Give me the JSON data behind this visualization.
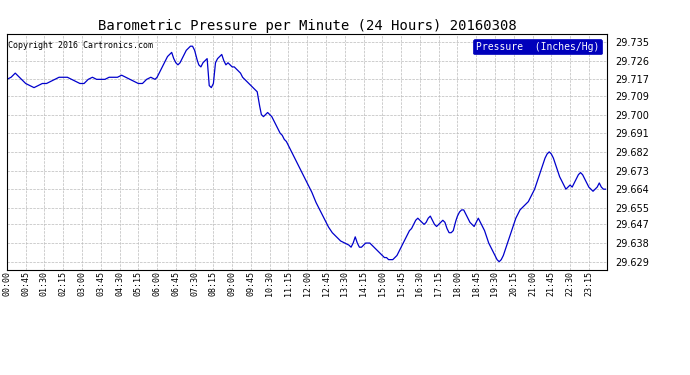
{
  "title": "Barometric Pressure per Minute (24 Hours) 20160308",
  "copyright_text": "Copyright 2016 Cartronics.com",
  "legend_label": "Pressure  (Inches/Hg)",
  "background_color": "#ffffff",
  "plot_bg_color": "#ffffff",
  "line_color": "#0000cc",
  "grid_color": "#bbbbbb",
  "yticks": [
    29.629,
    29.638,
    29.647,
    29.655,
    29.664,
    29.673,
    29.682,
    29.691,
    29.7,
    29.709,
    29.717,
    29.726,
    29.735
  ],
  "ylim": [
    29.625,
    29.739
  ],
  "xtick_labels": [
    "00:00",
    "00:45",
    "01:30",
    "02:15",
    "03:00",
    "03:45",
    "04:30",
    "05:15",
    "06:00",
    "06:45",
    "07:30",
    "08:15",
    "09:00",
    "09:45",
    "10:30",
    "11:15",
    "12:00",
    "12:45",
    "13:30",
    "14:15",
    "15:00",
    "15:45",
    "16:30",
    "17:15",
    "18:00",
    "18:45",
    "19:30",
    "20:15",
    "21:00",
    "21:45",
    "22:30",
    "23:15"
  ],
  "keypoints": [
    [
      0,
      29.717
    ],
    [
      10,
      29.718
    ],
    [
      20,
      29.72
    ],
    [
      30,
      29.718
    ],
    [
      40,
      29.716
    ],
    [
      45,
      29.715
    ],
    [
      55,
      29.714
    ],
    [
      65,
      29.713
    ],
    [
      75,
      29.714
    ],
    [
      85,
      29.715
    ],
    [
      95,
      29.715
    ],
    [
      105,
      29.716
    ],
    [
      115,
      29.717
    ],
    [
      125,
      29.718
    ],
    [
      135,
      29.718
    ],
    [
      145,
      29.718
    ],
    [
      155,
      29.717
    ],
    [
      165,
      29.716
    ],
    [
      175,
      29.715
    ],
    [
      185,
      29.715
    ],
    [
      195,
      29.717
    ],
    [
      205,
      29.718
    ],
    [
      215,
      29.717
    ],
    [
      225,
      29.717
    ],
    [
      235,
      29.717
    ],
    [
      245,
      29.718
    ],
    [
      255,
      29.718
    ],
    [
      265,
      29.718
    ],
    [
      275,
      29.719
    ],
    [
      285,
      29.718
    ],
    [
      295,
      29.717
    ],
    [
      305,
      29.716
    ],
    [
      315,
      29.715
    ],
    [
      325,
      29.715
    ],
    [
      335,
      29.717
    ],
    [
      345,
      29.718
    ],
    [
      355,
      29.717
    ],
    [
      360,
      29.718
    ],
    [
      370,
      29.722
    ],
    [
      375,
      29.724
    ],
    [
      380,
      29.726
    ],
    [
      385,
      29.728
    ],
    [
      390,
      29.729
    ],
    [
      395,
      29.73
    ],
    [
      400,
      29.727
    ],
    [
      405,
      29.725
    ],
    [
      410,
      29.724
    ],
    [
      415,
      29.725
    ],
    [
      420,
      29.727
    ],
    [
      425,
      29.729
    ],
    [
      430,
      29.731
    ],
    [
      435,
      29.732
    ],
    [
      440,
      29.733
    ],
    [
      445,
      29.733
    ],
    [
      450,
      29.731
    ],
    [
      455,
      29.727
    ],
    [
      460,
      29.724
    ],
    [
      465,
      29.723
    ],
    [
      470,
      29.725
    ],
    [
      475,
      29.726
    ],
    [
      480,
      29.727
    ],
    [
      485,
      29.714
    ],
    [
      490,
      29.713
    ],
    [
      495,
      29.715
    ],
    [
      500,
      29.725
    ],
    [
      505,
      29.727
    ],
    [
      510,
      29.728
    ],
    [
      515,
      29.729
    ],
    [
      520,
      29.726
    ],
    [
      525,
      29.724
    ],
    [
      530,
      29.725
    ],
    [
      535,
      29.724
    ],
    [
      540,
      29.723
    ],
    [
      545,
      29.723
    ],
    [
      550,
      29.722
    ],
    [
      555,
      29.721
    ],
    [
      560,
      29.72
    ],
    [
      565,
      29.718
    ],
    [
      570,
      29.717
    ],
    [
      575,
      29.716
    ],
    [
      580,
      29.715
    ],
    [
      585,
      29.714
    ],
    [
      590,
      29.713
    ],
    [
      595,
      29.712
    ],
    [
      600,
      29.711
    ],
    [
      605,
      29.705
    ],
    [
      610,
      29.7
    ],
    [
      615,
      29.699
    ],
    [
      620,
      29.7
    ],
    [
      625,
      29.701
    ],
    [
      630,
      29.7
    ],
    [
      635,
      29.699
    ],
    [
      640,
      29.697
    ],
    [
      645,
      29.695
    ],
    [
      650,
      29.693
    ],
    [
      655,
      29.691
    ],
    [
      660,
      29.69
    ],
    [
      665,
      29.688
    ],
    [
      670,
      29.687
    ],
    [
      675,
      29.685
    ],
    [
      680,
      29.683
    ],
    [
      690,
      29.679
    ],
    [
      700,
      29.675
    ],
    [
      710,
      29.671
    ],
    [
      720,
      29.667
    ],
    [
      730,
      29.663
    ],
    [
      740,
      29.658
    ],
    [
      750,
      29.654
    ],
    [
      760,
      29.65
    ],
    [
      770,
      29.646
    ],
    [
      780,
      29.643
    ],
    [
      790,
      29.641
    ],
    [
      800,
      29.639
    ],
    [
      810,
      29.638
    ],
    [
      820,
      29.637
    ],
    [
      825,
      29.636
    ],
    [
      830,
      29.638
    ],
    [
      835,
      29.641
    ],
    [
      840,
      29.638
    ],
    [
      845,
      29.636
    ],
    [
      850,
      29.636
    ],
    [
      855,
      29.637
    ],
    [
      860,
      29.638
    ],
    [
      865,
      29.638
    ],
    [
      870,
      29.638
    ],
    [
      875,
      29.637
    ],
    [
      880,
      29.636
    ],
    [
      885,
      29.635
    ],
    [
      890,
      29.634
    ],
    [
      895,
      29.633
    ],
    [
      900,
      29.632
    ],
    [
      905,
      29.631
    ],
    [
      910,
      29.631
    ],
    [
      915,
      29.63
    ],
    [
      920,
      29.63
    ],
    [
      925,
      29.63
    ],
    [
      930,
      29.631
    ],
    [
      935,
      29.632
    ],
    [
      940,
      29.634
    ],
    [
      945,
      29.636
    ],
    [
      950,
      29.638
    ],
    [
      955,
      29.64
    ],
    [
      960,
      29.642
    ],
    [
      965,
      29.644
    ],
    [
      970,
      29.645
    ],
    [
      975,
      29.647
    ],
    [
      980,
      29.649
    ],
    [
      985,
      29.65
    ],
    [
      990,
      29.649
    ],
    [
      995,
      29.648
    ],
    [
      1000,
      29.647
    ],
    [
      1005,
      29.648
    ],
    [
      1010,
      29.65
    ],
    [
      1015,
      29.651
    ],
    [
      1020,
      29.649
    ],
    [
      1025,
      29.647
    ],
    [
      1030,
      29.646
    ],
    [
      1035,
      29.647
    ],
    [
      1040,
      29.648
    ],
    [
      1045,
      29.649
    ],
    [
      1050,
      29.648
    ],
    [
      1055,
      29.645
    ],
    [
      1060,
      29.643
    ],
    [
      1065,
      29.643
    ],
    [
      1070,
      29.644
    ],
    [
      1075,
      29.648
    ],
    [
      1080,
      29.651
    ],
    [
      1085,
      29.653
    ],
    [
      1090,
      29.654
    ],
    [
      1095,
      29.654
    ],
    [
      1100,
      29.652
    ],
    [
      1105,
      29.65
    ],
    [
      1110,
      29.648
    ],
    [
      1115,
      29.647
    ],
    [
      1120,
      29.646
    ],
    [
      1125,
      29.648
    ],
    [
      1130,
      29.65
    ],
    [
      1135,
      29.648
    ],
    [
      1140,
      29.646
    ],
    [
      1145,
      29.644
    ],
    [
      1150,
      29.641
    ],
    [
      1155,
      29.638
    ],
    [
      1160,
      29.636
    ],
    [
      1165,
      29.634
    ],
    [
      1170,
      29.632
    ],
    [
      1175,
      29.63
    ],
    [
      1180,
      29.629
    ],
    [
      1185,
      29.63
    ],
    [
      1190,
      29.632
    ],
    [
      1195,
      29.635
    ],
    [
      1200,
      29.638
    ],
    [
      1205,
      29.641
    ],
    [
      1210,
      29.644
    ],
    [
      1215,
      29.647
    ],
    [
      1220,
      29.65
    ],
    [
      1225,
      29.652
    ],
    [
      1230,
      29.654
    ],
    [
      1235,
      29.655
    ],
    [
      1240,
      29.656
    ],
    [
      1245,
      29.657
    ],
    [
      1250,
      29.658
    ],
    [
      1255,
      29.66
    ],
    [
      1260,
      29.662
    ],
    [
      1265,
      29.664
    ],
    [
      1270,
      29.667
    ],
    [
      1275,
      29.67
    ],
    [
      1280,
      29.673
    ],
    [
      1285,
      29.676
    ],
    [
      1290,
      29.679
    ],
    [
      1295,
      29.681
    ],
    [
      1300,
      29.682
    ],
    [
      1305,
      29.681
    ],
    [
      1310,
      29.679
    ],
    [
      1315,
      29.676
    ],
    [
      1320,
      29.673
    ],
    [
      1325,
      29.67
    ],
    [
      1330,
      29.668
    ],
    [
      1335,
      29.666
    ],
    [
      1340,
      29.664
    ],
    [
      1345,
      29.665
    ],
    [
      1350,
      29.666
    ],
    [
      1355,
      29.665
    ],
    [
      1360,
      29.667
    ],
    [
      1365,
      29.669
    ],
    [
      1370,
      29.671
    ],
    [
      1375,
      29.672
    ],
    [
      1380,
      29.671
    ],
    [
      1385,
      29.669
    ],
    [
      1390,
      29.667
    ],
    [
      1395,
      29.665
    ],
    [
      1400,
      29.664
    ],
    [
      1405,
      29.663
    ],
    [
      1410,
      29.664
    ],
    [
      1415,
      29.665
    ],
    [
      1420,
      29.667
    ],
    [
      1425,
      29.665
    ],
    [
      1430,
      29.664
    ],
    [
      1435,
      29.664
    ]
  ]
}
